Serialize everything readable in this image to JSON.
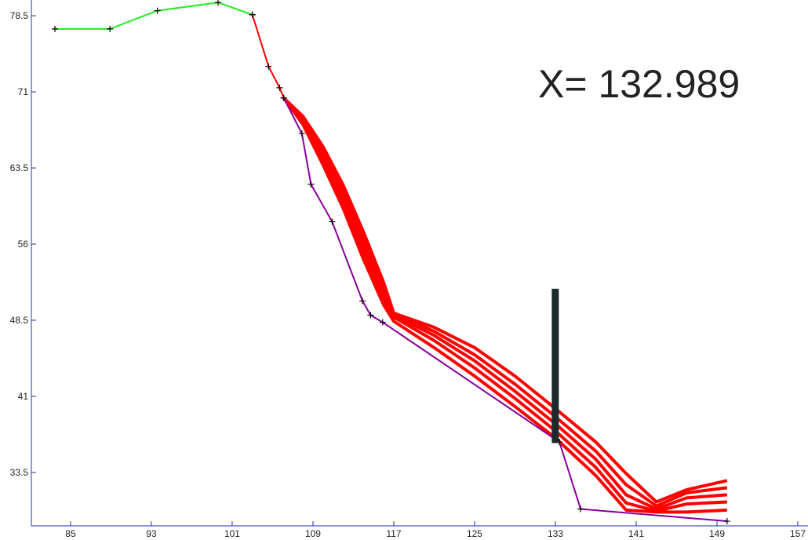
{
  "chart_data": {
    "type": "line",
    "annotation": "X= 132.989",
    "xlim": [
      81.12,
      158.01
    ],
    "ylim": [
      28.24,
      80.05
    ],
    "xticks": [
      85,
      93,
      101,
      109,
      117,
      125,
      133,
      141,
      149,
      157
    ],
    "yticks": [
      33.5,
      41,
      48.5,
      56,
      63.5,
      71,
      78.5
    ],
    "cursor": {
      "x": 132.989,
      "y": [
        36.4,
        51.6
      ],
      "color": "#1c2a2c"
    },
    "series": [
      {
        "color": "#22ee22",
        "markers": true,
        "x": [
          83.45,
          88.9,
          93.6,
          99.6,
          103.0
        ],
        "values": [
          77.2,
          77.2,
          79.0,
          79.8,
          78.6
        ]
      },
      {
        "color": "#ff0000",
        "markers": true,
        "x": [
          103.0,
          104.6,
          105.7,
          106.1
        ],
        "values": [
          78.6,
          73.5,
          71.4,
          70.4
        ]
      },
      {
        "color": "#880099",
        "markers": true,
        "x": [
          106.1,
          107.9,
          108.8,
          110.9,
          113.9,
          114.7,
          115.9,
          133.4,
          135.5,
          150.0
        ],
        "values": [
          70.4,
          66.9,
          61.9,
          58.2,
          50.4,
          49.0,
          48.3,
          36.5,
          29.9,
          28.7
        ]
      },
      {
        "color": "#ff0000",
        "markers": false,
        "x": [
          106.1,
          108,
          110,
          112,
          114,
          116,
          117,
          121,
          125,
          129,
          133,
          137,
          140,
          143,
          146,
          150
        ],
        "values": [
          70.4,
          67.8,
          63.8,
          59.5,
          54.5,
          50.0,
          48.4,
          45.8,
          43.0,
          40.0,
          36.9,
          33.2,
          29.8,
          29.6,
          29.6,
          29.8
        ]
      },
      {
        "color": "#ff0000",
        "markers": false,
        "x": [
          106.1,
          108,
          110,
          112,
          114,
          116,
          117,
          121,
          125,
          129,
          133,
          137,
          140,
          143,
          146,
          150
        ],
        "values": [
          70.4,
          68.0,
          64.3,
          60.2,
          55.3,
          50.6,
          48.8,
          46.5,
          43.8,
          40.8,
          37.6,
          34.0,
          30.5,
          29.7,
          30.4,
          30.6
        ]
      },
      {
        "color": "#ff0000",
        "markers": false,
        "x": [
          106.1,
          108,
          110,
          112,
          114,
          116,
          117,
          121,
          125,
          129,
          133,
          137,
          140,
          143,
          146,
          150
        ],
        "values": [
          70.4,
          68.2,
          64.8,
          60.8,
          56.0,
          51.2,
          49.0,
          47.0,
          44.5,
          41.5,
          38.3,
          34.8,
          31.3,
          29.9,
          31.0,
          31.3
        ]
      },
      {
        "color": "#ff0000",
        "markers": false,
        "x": [
          106.1,
          108,
          110,
          112,
          114,
          116,
          117,
          121,
          125,
          129,
          133,
          137,
          140,
          143,
          146,
          150
        ],
        "values": [
          70.4,
          68.4,
          65.2,
          61.3,
          56.6,
          51.7,
          49.1,
          47.4,
          45.1,
          42.2,
          39.0,
          35.6,
          32.3,
          30.2,
          31.5,
          32.0
        ]
      },
      {
        "color": "#ff0000",
        "markers": false,
        "x": [
          106.1,
          108,
          110,
          112,
          114,
          116,
          117,
          121,
          125,
          129,
          133,
          137,
          140,
          143,
          146,
          150
        ],
        "values": [
          70.4,
          68.6,
          65.6,
          61.8,
          57.2,
          52.2,
          49.2,
          47.8,
          45.8,
          43.0,
          39.8,
          36.5,
          33.4,
          30.6,
          31.8,
          32.7
        ]
      }
    ]
  }
}
